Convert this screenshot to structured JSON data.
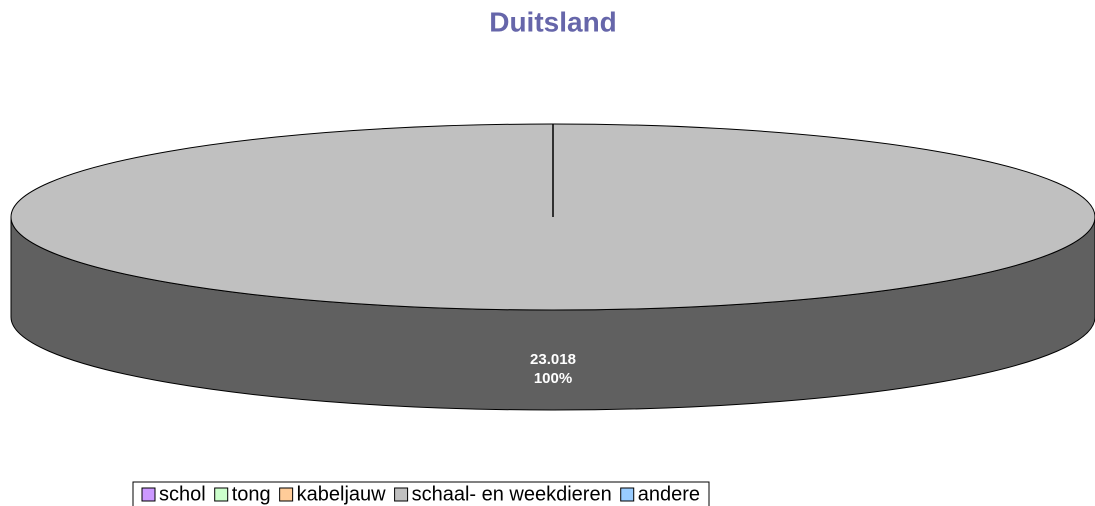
{
  "chart_data": {
    "type": "pie3d",
    "title": "Duitsland",
    "categories": [
      "schol",
      "tong",
      "kabeljauw",
      "schaal- en weekdieren",
      "andere"
    ],
    "values": [
      0,
      0,
      0,
      23018,
      0
    ],
    "value_labels": [
      null,
      null,
      null,
      "23.018",
      null
    ],
    "percents": [
      0,
      0,
      0,
      100,
      0
    ],
    "percent_labels": [
      null,
      null,
      null,
      "100%",
      null
    ],
    "colors": [
      "#cc99ff",
      "#ccffcc",
      "#ffcc99",
      "#c0c0c0",
      "#99ccff"
    ],
    "side_colors": [
      "#6a4c88",
      "#6a886a",
      "#88684c",
      "#606060",
      "#4c6a88"
    ]
  }
}
